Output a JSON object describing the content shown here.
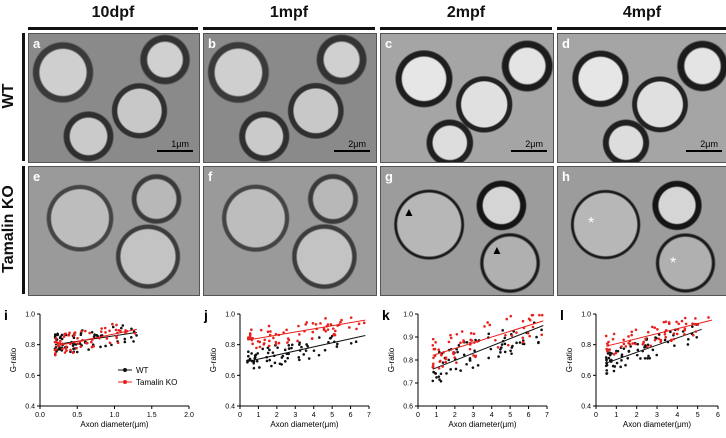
{
  "columns": [
    "10dpf",
    "1mpf",
    "2mpf",
    "4mpf"
  ],
  "rows": [
    "WT",
    "Tamalin KO"
  ],
  "em_panels": [
    {
      "letter": "a",
      "scale": "1μm"
    },
    {
      "letter": "b",
      "scale": "2μm"
    },
    {
      "letter": "c",
      "scale": "2μm"
    },
    {
      "letter": "d",
      "scale": "2μm"
    },
    {
      "letter": "e",
      "scale": ""
    },
    {
      "letter": "f",
      "scale": ""
    },
    {
      "letter": "g",
      "scale": ""
    },
    {
      "letter": "h",
      "scale": ""
    }
  ],
  "star_symbol": "*",
  "arrow_symbol": "▲",
  "colors": {
    "wt": "#111111",
    "ko": "#e8201c"
  },
  "chart_data": [
    {
      "type": "scatter",
      "letter": "i",
      "xlabel": "Axon diameter(μm)",
      "ylabel": "G-ratio",
      "xlim": [
        0,
        2.0
      ],
      "ylim": [
        0.4,
        1.0
      ],
      "xticks": [
        "0.0",
        "0.5",
        "1.0",
        "1.5",
        "2.0"
      ],
      "yticks": [
        "0.4",
        "0.6",
        "0.8",
        "1.0"
      ],
      "legend": [
        "WT",
        "Tamalin KO"
      ],
      "series": [
        {
          "name": "WT",
          "fit": [
            [
              0.2,
              0.8
            ],
            [
              1.3,
              0.88
            ]
          ]
        },
        {
          "name": "Tamalin KO",
          "fit": [
            [
              0.2,
              0.79
            ],
            [
              1.3,
              0.9
            ]
          ]
        }
      ]
    },
    {
      "type": "scatter",
      "letter": "j",
      "xlabel": "Axon diameter(μm)",
      "ylabel": "G-ratio",
      "xlim": [
        0,
        7
      ],
      "ylim": [
        0.4,
        1.0
      ],
      "xticks": [
        "0",
        "1",
        "2",
        "3",
        "4",
        "5",
        "6",
        "7"
      ],
      "yticks": [
        "0.4",
        "0.6",
        "0.8",
        "1.0"
      ],
      "series": [
        {
          "name": "WT",
          "fit": [
            [
              0.4,
              0.69
            ],
            [
              6.8,
              0.86
            ]
          ]
        },
        {
          "name": "Tamalin KO",
          "fit": [
            [
              0.4,
              0.83
            ],
            [
              6.8,
              0.96
            ]
          ]
        }
      ]
    },
    {
      "type": "scatter",
      "letter": "k",
      "xlabel": "Axon diameter(μm)",
      "ylabel": "G-ratio",
      "xlim": [
        0,
        7
      ],
      "ylim": [
        0.6,
        1.0
      ],
      "xticks": [
        "0",
        "1",
        "2",
        "3",
        "4",
        "5",
        "6",
        "7"
      ],
      "yticks": [
        "0.6",
        "0.7",
        "0.8",
        "0.9",
        "1.0"
      ],
      "series": [
        {
          "name": "WT",
          "fit": [
            [
              0.8,
              0.76
            ],
            [
              6.8,
              0.95
            ]
          ]
        },
        {
          "name": "Tamalin KO",
          "fit": [
            [
              0.8,
              0.82
            ],
            [
              6.8,
              0.97
            ]
          ]
        }
      ]
    },
    {
      "type": "scatter",
      "letter": "l",
      "xlabel": "Axon diameter(μm)",
      "ylabel": "G-ratio",
      "xlim": [
        0,
        6
      ],
      "ylim": [
        0.4,
        1.0
      ],
      "xticks": [
        "0",
        "1",
        "2",
        "3",
        "4",
        "5",
        "6"
      ],
      "yticks": [
        "0.4",
        "0.6",
        "0.8",
        "1.0"
      ],
      "series": [
        {
          "name": "WT",
          "fit": [
            [
              0.5,
              0.68
            ],
            [
              5.2,
              0.9
            ]
          ]
        },
        {
          "name": "Tamalin KO",
          "fit": [
            [
              0.5,
              0.79
            ],
            [
              5.7,
              0.96
            ]
          ]
        }
      ]
    }
  ]
}
